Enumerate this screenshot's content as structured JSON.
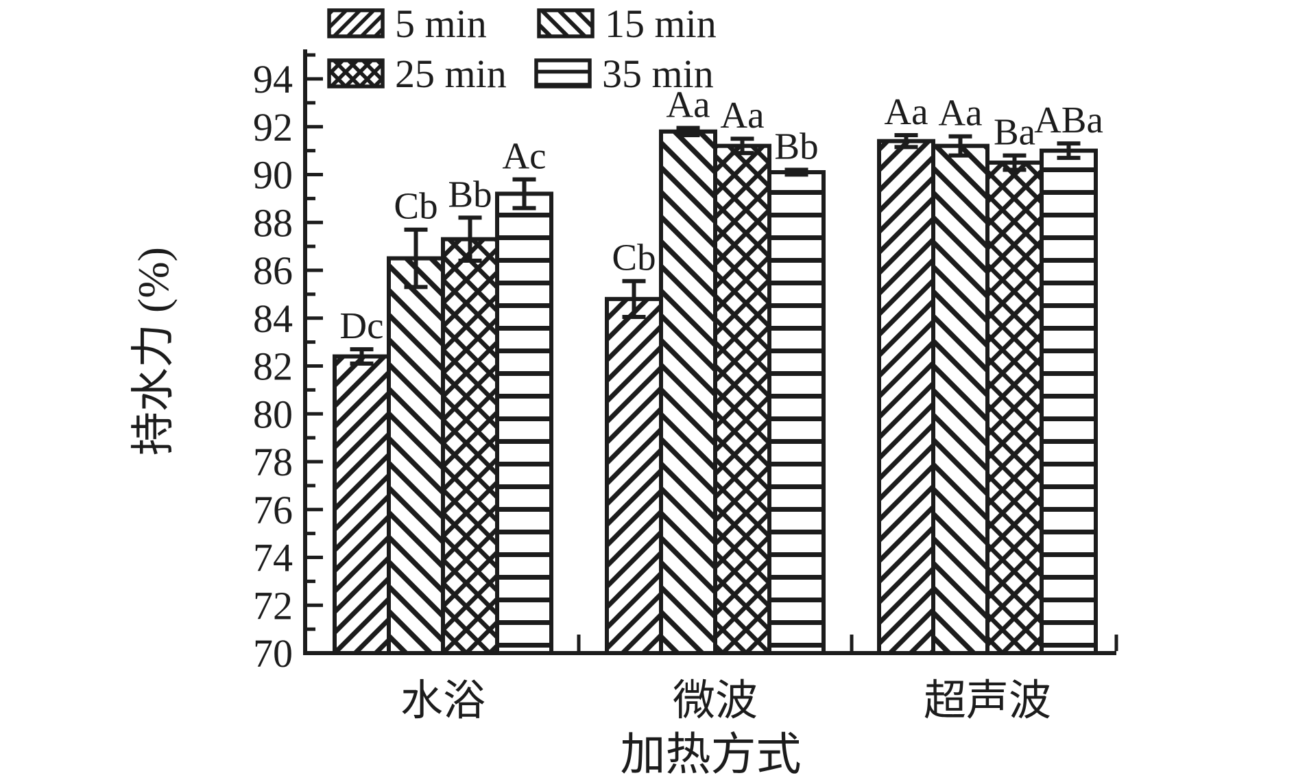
{
  "figure": {
    "background": "#ffffff",
    "ink_color": "#1c1c1c"
  },
  "chart_data": {
    "type": "bar",
    "title": "",
    "xlabel": "加热方式",
    "ylabel": "持水力 (%)",
    "ylim": [
      70,
      95.3
    ],
    "y_major_ticks": [
      70,
      72,
      74,
      76,
      78,
      80,
      82,
      84,
      86,
      88,
      90,
      92,
      94
    ],
    "y_minor_tick_step": 1,
    "grid": false,
    "legend_position": "top-left",
    "categories": [
      "水浴",
      "微波",
      "超声波"
    ],
    "series": [
      {
        "name": "5 min",
        "hatch": "diagonal-forward",
        "values": [
          82.4,
          84.8,
          91.4
        ],
        "errors": [
          0.3,
          0.75,
          0.25
        ],
        "sig_labels": [
          "Dc",
          "Cb",
          "Aa"
        ]
      },
      {
        "name": "15 min",
        "hatch": "diagonal-back",
        "values": [
          86.5,
          91.8,
          91.2
        ],
        "errors": [
          1.2,
          0.15,
          0.4
        ],
        "sig_labels": [
          "Cb",
          "Aa",
          "Aa"
        ]
      },
      {
        "name": "25 min",
        "hatch": "crosshatch",
        "values": [
          87.3,
          91.2,
          90.5
        ],
        "errors": [
          0.9,
          0.3,
          0.3
        ],
        "sig_labels": [
          "Bb",
          "Aa",
          "Ba"
        ]
      },
      {
        "name": "35 min",
        "hatch": "horizontal",
        "values": [
          89.2,
          90.1,
          91.0
        ],
        "errors": [
          0.6,
          0.1,
          0.3
        ],
        "sig_labels": [
          "Ac",
          "Bb",
          "ABa"
        ]
      }
    ]
  }
}
